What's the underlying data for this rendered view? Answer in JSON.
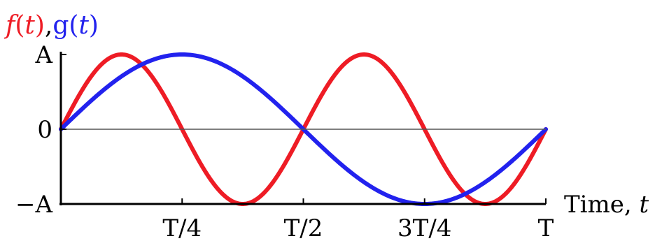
{
  "chart_data": {
    "type": "line",
    "title_parts": [
      {
        "text": "f",
        "italic": true,
        "color": "#ee1c25"
      },
      {
        "text": "(",
        "italic": false,
        "color": "#ee1c25"
      },
      {
        "text": "t",
        "italic": true,
        "color": "#ee1c25"
      },
      {
        "text": ")",
        "italic": false,
        "color": "#ee1c25"
      },
      {
        "text": ",",
        "italic": false,
        "color": "#000000"
      },
      {
        "text": "g",
        "italic": false,
        "color": "#2222ee"
      },
      {
        "text": "(",
        "italic": false,
        "color": "#2222ee"
      },
      {
        "text": "t",
        "italic": true,
        "color": "#2222ee"
      },
      {
        "text": ")",
        "italic": false,
        "color": "#2222ee"
      }
    ],
    "xlabel_parts": [
      {
        "text": "Time, ",
        "italic": false
      },
      {
        "text": "t",
        "italic": true
      }
    ],
    "xlim": [
      0,
      1
    ],
    "ylim": [
      -1,
      1
    ],
    "xticks": [
      {
        "value": 0.25,
        "label": "T/4"
      },
      {
        "value": 0.5,
        "label": "T/2"
      },
      {
        "value": 0.75,
        "label": "3T/4"
      },
      {
        "value": 1.0,
        "label": "T"
      }
    ],
    "yticks": [
      {
        "value": 1,
        "label": "A"
      },
      {
        "value": 0,
        "label": "0"
      },
      {
        "value": -1,
        "label": "−A"
      }
    ],
    "grid": false,
    "legend": "none",
    "series": [
      {
        "color": "#ee1c25",
        "cycles_per_period": 2
      },
      {
        "color": "#2222ee",
        "cycles_per_period": 1
      }
    ]
  }
}
